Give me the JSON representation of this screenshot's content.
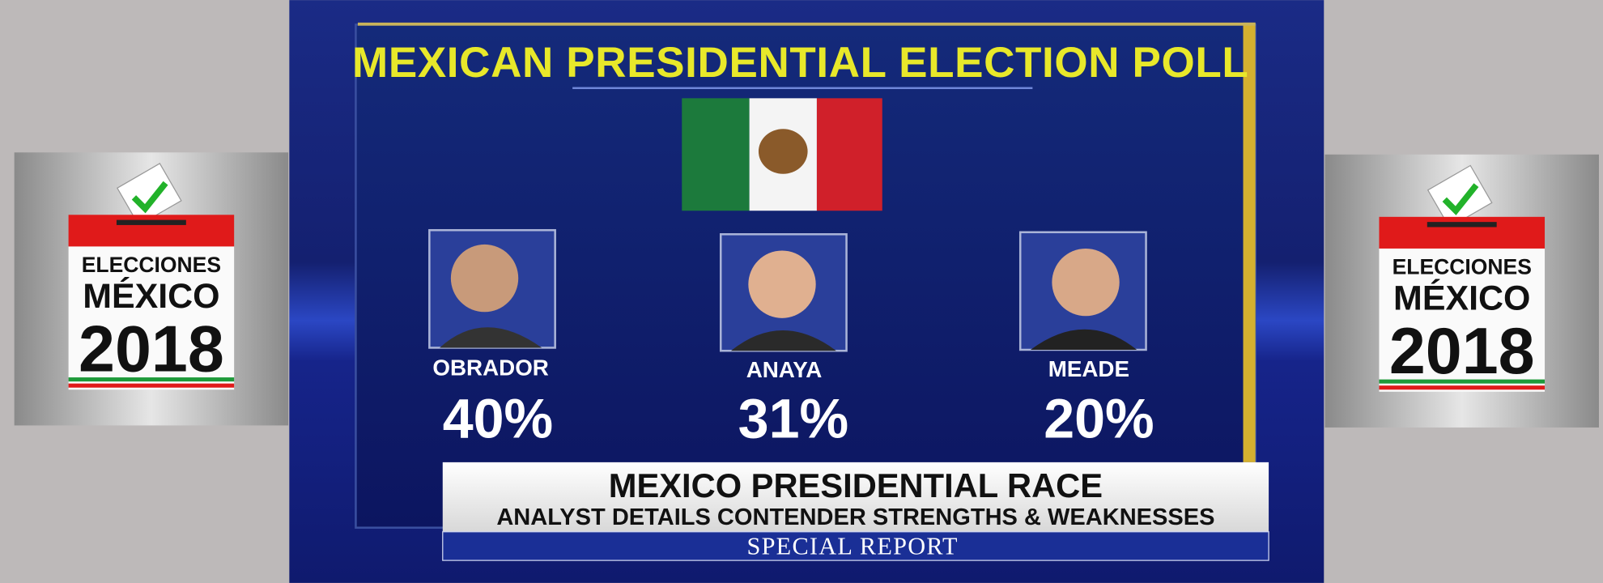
{
  "left_badge": {
    "line1": "ELECCIONES",
    "line2": "MÉXICO",
    "line3": "2018"
  },
  "right_badge": {
    "line1": "ELECCIONES",
    "line2": "MÉXICO",
    "line3": "2018"
  },
  "graphic": {
    "title": "MEXICAN PRESIDENTIAL ELECTION POLL",
    "candidates": [
      {
        "name": "OBRADOR",
        "percent": "40%"
      },
      {
        "name": "ANAYA",
        "percent": "31%"
      },
      {
        "name": "MEADE",
        "percent": "20%"
      }
    ]
  },
  "lower_third": {
    "headline": "MEXICO PRESIDENTIAL RACE",
    "subhead": "ANALYST DETAILS CONTENDER STRENGTHS & WEAKNESSES",
    "program": "SPECIAL REPORT"
  }
}
